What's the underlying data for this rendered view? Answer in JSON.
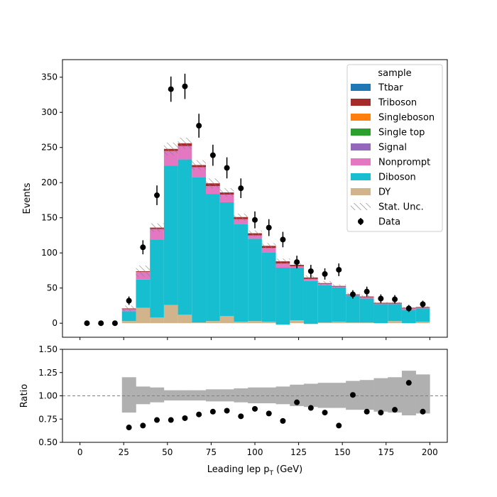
{
  "chart_data": [
    {
      "type": "bar",
      "stacked": true,
      "histtype": "step-filled",
      "xlabel": "Leading lep p_T (GeV)",
      "ylabel": "Events",
      "xlim": [
        -10,
        210
      ],
      "ylim": [
        -20,
        375
      ],
      "yticks": [
        0,
        50,
        100,
        150,
        200,
        250,
        300,
        350
      ],
      "legend": {
        "title": "sample",
        "position": "top-right",
        "entries": [
          "Ttbar",
          "Triboson",
          "Singleboson",
          "Single top",
          "Signal",
          "Nonprompt",
          "Diboson",
          "DY",
          "Stat. Unc.",
          "Data"
        ]
      },
      "bin_edges": [
        24,
        32,
        40,
        48,
        56,
        64,
        72,
        80,
        88,
        96,
        104,
        112,
        120,
        128,
        136,
        144,
        152,
        160,
        168,
        176,
        184,
        192,
        200
      ],
      "series": [
        {
          "name": "DY",
          "color": "#d2b48c",
          "values": [
            3,
            22,
            8,
            26,
            12,
            1,
            3,
            10,
            2,
            3,
            2,
            -2,
            4,
            -1,
            1,
            2,
            1,
            1,
            0,
            3,
            0,
            2
          ]
        },
        {
          "name": "Diboson",
          "color": "#17becf",
          "values": [
            14,
            40,
            111,
            198,
            221,
            207,
            181,
            162,
            139,
            117,
            99,
            81,
            75,
            61,
            53,
            49,
            38,
            34,
            27,
            24,
            19,
            19
          ]
        },
        {
          "name": "Nonprompt",
          "color": "#e377c2",
          "values": [
            3,
            11,
            15,
            21,
            19,
            14,
            11,
            11,
            7,
            5,
            6,
            6,
            2,
            3,
            2,
            1,
            1,
            2,
            1,
            1,
            2,
            1
          ]
        },
        {
          "name": "Signal",
          "color": "#9467bd",
          "values": [
            0,
            0,
            0,
            0,
            0,
            0,
            0,
            0,
            0,
            0,
            0,
            0,
            0,
            0,
            0,
            0,
            0,
            0,
            0,
            0,
            0,
            0
          ]
        },
        {
          "name": "Single top",
          "color": "#2ca02c",
          "values": [
            0,
            0,
            0,
            0,
            0,
            0,
            0,
            0,
            0,
            0,
            0,
            0,
            0,
            0,
            0,
            0,
            0,
            0,
            0,
            0,
            0,
            0
          ]
        },
        {
          "name": "Singleboson",
          "color": "#ff7f0e",
          "values": [
            0,
            0,
            0,
            0,
            0,
            0,
            0,
            0,
            0,
            0,
            0,
            0,
            0,
            0,
            0,
            0,
            0,
            0,
            0,
            0,
            0,
            0
          ]
        },
        {
          "name": "Triboson",
          "color": "#a62a2a",
          "values": [
            1,
            1,
            2,
            3,
            4,
            3,
            4,
            3,
            3,
            3,
            3,
            3,
            2,
            2,
            1,
            1,
            1,
            1,
            1,
            1,
            1,
            1
          ]
        },
        {
          "name": "Ttbar",
          "color": "#1f77b4",
          "values": [
            0,
            0,
            0,
            0,
            0,
            0,
            0,
            0,
            0,
            0,
            0,
            0,
            0,
            0,
            0,
            0,
            0,
            0,
            0,
            0,
            0,
            0
          ]
        }
      ],
      "stat_unc": [
        4,
        8,
        6,
        9,
        8,
        7,
        7,
        6,
        5,
        4,
        4,
        4,
        3,
        3,
        3,
        2,
        2,
        2,
        1,
        1,
        1,
        1
      ],
      "data": {
        "name": "Data",
        "x": [
          4,
          12,
          20,
          28,
          36,
          44,
          52,
          60,
          68,
          76,
          84,
          92,
          100,
          108,
          116,
          124,
          132,
          140,
          148,
          156,
          164,
          172,
          180,
          188,
          196
        ],
        "y": [
          0,
          0,
          0,
          32,
          108,
          182,
          333,
          337,
          281,
          239,
          221,
          192,
          147,
          136,
          119,
          87,
          74,
          70,
          76,
          41,
          45,
          35,
          34,
          21,
          27
        ],
        "yerr": [
          0,
          0,
          0,
          6,
          10,
          14,
          18,
          18,
          17,
          15,
          15,
          14,
          12,
          12,
          11,
          9,
          9,
          8,
          9,
          6,
          7,
          6,
          6,
          5,
          5
        ]
      }
    },
    {
      "type": "scatter",
      "xlabel": "Leading lep p_T (GeV)",
      "ylabel": "Ratio",
      "xlim": [
        -10,
        210
      ],
      "ylim": [
        0.5,
        1.5
      ],
      "xticks": [
        0,
        25,
        50,
        75,
        100,
        125,
        150,
        175,
        200
      ],
      "yticks": [
        0.5,
        0.75,
        1.0,
        1.25,
        1.5
      ],
      "reference_line": 1.0,
      "unc_band": {
        "bin_edges": [
          24,
          32,
          40,
          48,
          56,
          64,
          72,
          80,
          88,
          96,
          104,
          112,
          120,
          128,
          136,
          144,
          152,
          160,
          168,
          176,
          184,
          192,
          200
        ],
        "low": [
          0.82,
          0.91,
          0.93,
          0.95,
          0.95,
          0.95,
          0.94,
          0.94,
          0.93,
          0.92,
          0.92,
          0.91,
          0.89,
          0.88,
          0.87,
          0.87,
          0.85,
          0.85,
          0.83,
          0.82,
          0.79,
          0.81
        ],
        "high": [
          1.2,
          1.1,
          1.09,
          1.06,
          1.06,
          1.06,
          1.07,
          1.07,
          1.08,
          1.09,
          1.09,
          1.1,
          1.12,
          1.13,
          1.14,
          1.14,
          1.16,
          1.17,
          1.19,
          1.2,
          1.27,
          1.23
        ]
      },
      "x": [
        28,
        36,
        44,
        52,
        60,
        68,
        76,
        84,
        92,
        100,
        108,
        116,
        124,
        132,
        140,
        148,
        156,
        164,
        172,
        180,
        188,
        196
      ],
      "y": [
        0.66,
        0.68,
        0.74,
        0.74,
        0.76,
        0.8,
        0.83,
        0.84,
        0.78,
        0.86,
        0.81,
        0.73,
        0.93,
        0.87,
        0.82,
        0.68,
        1.01,
        0.83,
        0.82,
        0.85,
        1.14,
        0.83
      ]
    }
  ],
  "colors": {
    "stat_unc_hatch": "#7f7f7f",
    "ratio_band": "#b0b0b0",
    "data_marker": "#000000",
    "reference_line": "#808080"
  }
}
